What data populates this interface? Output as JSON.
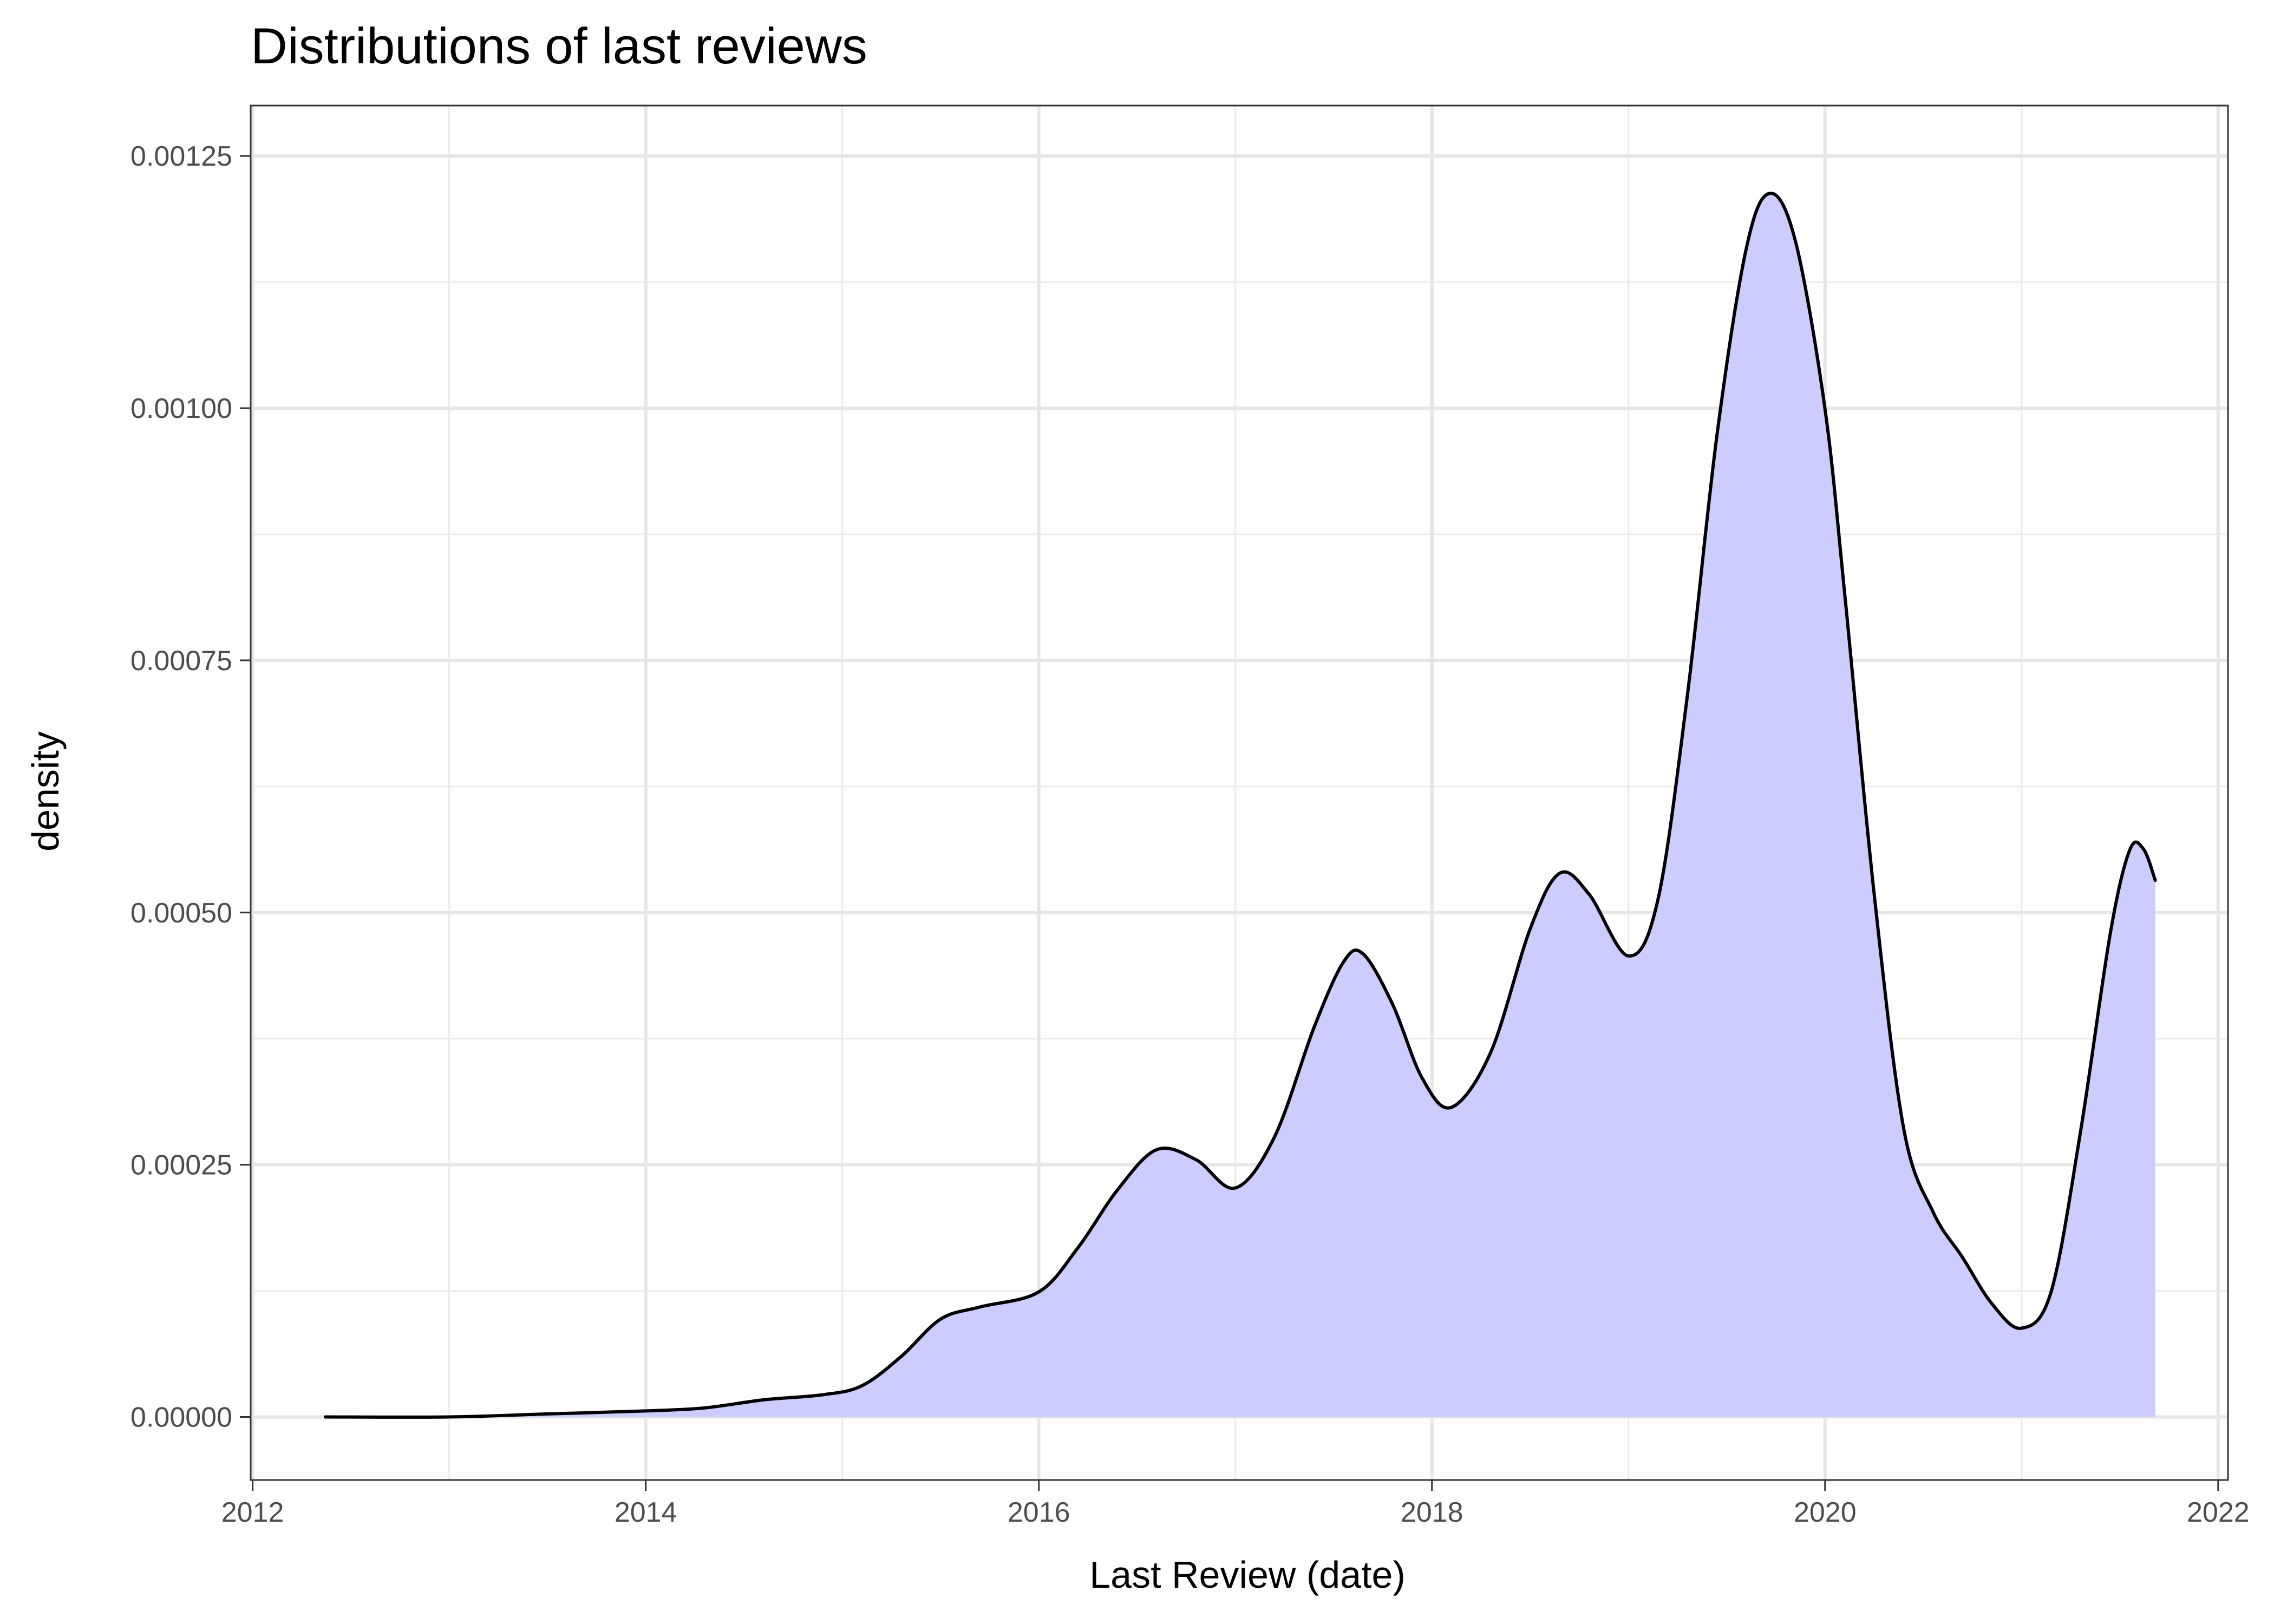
{
  "chart_data": {
    "type": "area",
    "title": "Distributions of last reviews",
    "xlabel": "Last Review (date)",
    "ylabel": "density",
    "xlim": [
      2011.99,
      2022.05
    ],
    "ylim": [
      -6.25e-05,
      0.0013
    ],
    "x_ticks": [
      2012,
      2014,
      2016,
      2018,
      2020,
      2022
    ],
    "x_tick_labels": [
      "2012",
      "2014",
      "2016",
      "2018",
      "2020",
      "2022"
    ],
    "y_ticks": [
      0,
      0.00025,
      0.0005,
      0.00075,
      0.001,
      0.00125
    ],
    "y_tick_labels": [
      "0.00000",
      "0.00025",
      "0.00050",
      "0.00075",
      "0.00100",
      "0.00125"
    ],
    "grid": true,
    "legend": "none",
    "fill_color": "#ccccff",
    "line_color": "#000000",
    "series": [
      {
        "x": [
          2012.37,
          2013.0,
          2013.5,
          2014.0,
          2014.3,
          2014.6,
          2014.9,
          2015.1,
          2015.3,
          2015.5,
          2015.7,
          2016.0,
          2016.2,
          2016.4,
          2016.6,
          2016.8,
          2017.0,
          2017.2,
          2017.4,
          2017.55,
          2017.65,
          2017.8,
          2017.95,
          2018.1,
          2018.3,
          2018.5,
          2018.65,
          2018.8,
          2019.0,
          2019.15,
          2019.3,
          2019.45,
          2019.6,
          2019.72,
          2019.85,
          2020.0,
          2020.1,
          2020.25,
          2020.4,
          2020.55,
          2020.7,
          2020.85,
          2021.0,
          2021.15,
          2021.3,
          2021.45,
          2021.55,
          2021.62,
          2021.68
        ],
        "y": [
          0.0,
          0.0,
          3e-06,
          6e-06,
          9e-06,
          1.7e-05,
          2.2e-05,
          3.1e-05,
          6e-05,
          9.7e-05,
          0.000109,
          0.000124,
          0.000168,
          0.000225,
          0.000265,
          0.000255,
          0.000227,
          0.000278,
          0.000386,
          0.000451,
          0.000459,
          0.000409,
          0.000336,
          0.000307,
          0.000362,
          0.000484,
          0.000539,
          0.000518,
          0.000457,
          0.000513,
          0.000716,
          0.000973,
          0.001159,
          0.001213,
          0.001165,
          0.000999,
          0.000816,
          0.000518,
          0.000286,
          0.000203,
          0.000158,
          0.000112,
          8.8e-05,
          0.000124,
          0.000283,
          0.000478,
          0.000562,
          0.000563,
          0.000532
        ]
      }
    ]
  }
}
